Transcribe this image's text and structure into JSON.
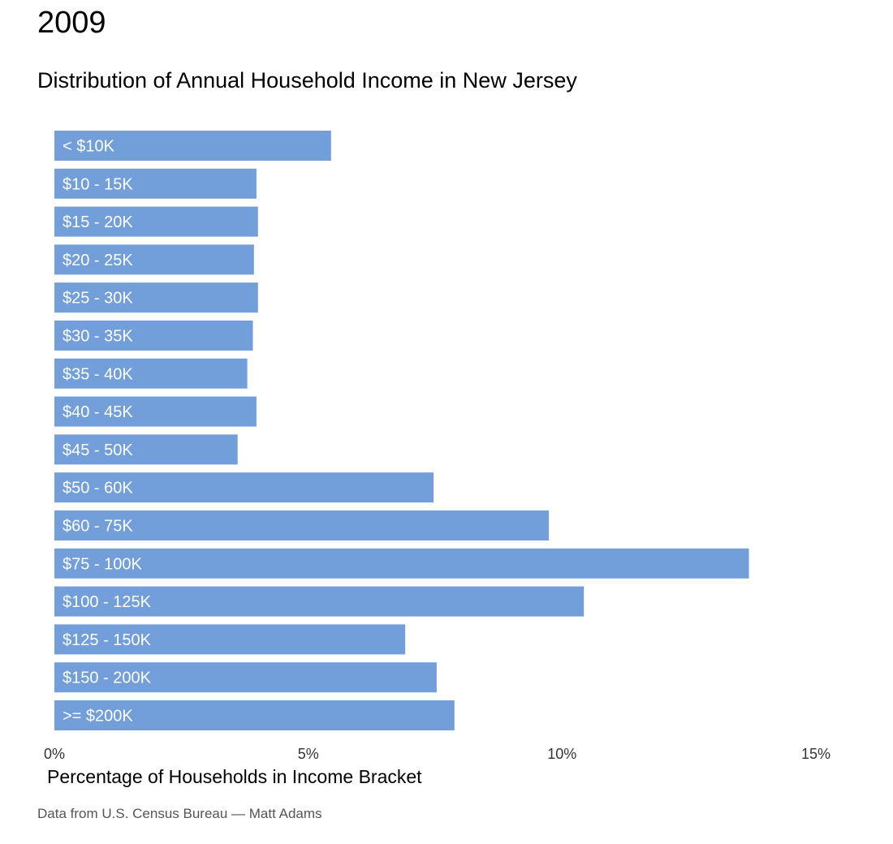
{
  "chart_data": {
    "type": "bar",
    "orientation": "horizontal",
    "title": "2009",
    "subtitle": "Distribution of Annual Household Income in New Jersey",
    "xlabel": "Percentage of Households in Income Bracket",
    "ylabel": "",
    "xlim": [
      0,
      15
    ],
    "x_ticks": [
      0,
      5,
      10,
      15
    ],
    "x_tick_labels": [
      "0%",
      "5%",
      "10%",
      "15%"
    ],
    "grid": false,
    "bar_color": "#729ed9",
    "categories": [
      "< $10K",
      "$10 - 15K",
      "$15 - 20K",
      "$20 - 25K",
      "$25 - 30K",
      "$30 - 35K",
      "$35 - 40K",
      "$40 - 45K",
      "$45 - 50K",
      "$50 - 60K",
      "$60 - 75K",
      "$75 - 100K",
      "$100 - 125K",
      "$125 - 150K",
      "$150 - 200K",
      ">= $200K"
    ],
    "values": [
      5.45,
      3.98,
      4.01,
      3.93,
      4.01,
      3.91,
      3.8,
      3.98,
      3.61,
      7.47,
      9.74,
      13.68,
      10.43,
      6.91,
      7.53,
      7.88
    ]
  },
  "source_note": "Data from U.S. Census Bureau — Matt Adams"
}
